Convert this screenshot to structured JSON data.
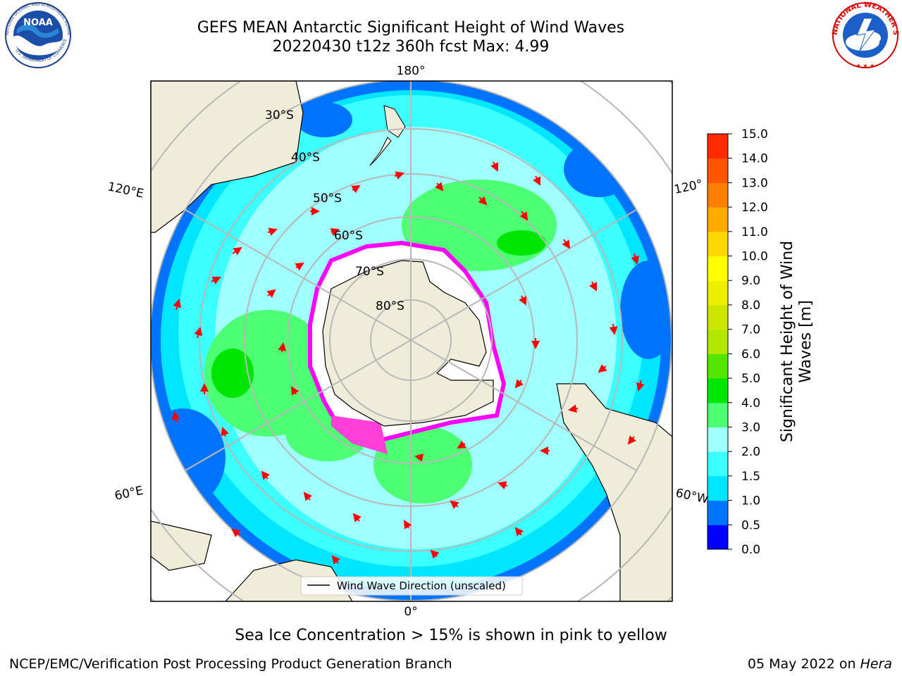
{
  "title": {
    "line1": "GEFS MEAN Antarctic Significant Height of Wind Waves",
    "line2": "20220430 t12z 360h fcst   Max: 4.99"
  },
  "logos": {
    "left": {
      "icon": "noaa-logo",
      "text": "NOAA",
      "ring_text": "NATIONAL OCEANIC AND ATMOSPHERIC ADMINISTRATION · U.S. DEPARTMENT OF COMMERCE"
    },
    "right": {
      "icon": "nws-logo",
      "ring_text": "NATIONAL WEATHER SERVICE"
    }
  },
  "map": {
    "projection": "south-polar-stereographic",
    "longitude_labels": {
      "top": "180°",
      "bottom": "0°",
      "upper_left": "120°E",
      "lower_left": "60°E",
      "upper_right": "120°",
      "lower_right": "60°W"
    },
    "latitude_labels": [
      "30°S",
      "40°S",
      "50°S",
      "60°S",
      "70°S",
      "80°S"
    ],
    "legend_label": "Wind Wave Direction (unscaled)",
    "colors": {
      "land": "#efecd9",
      "ice_edge": "#ff00ff",
      "arrow": "#ff0000",
      "grid": "#b8b8b8"
    }
  },
  "colorbar": {
    "label_line1": "Significant Height of Wind",
    "label_line2": "Waves [m]",
    "ticks": [
      "0.0",
      "0.5",
      "1.0",
      "1.5",
      "2.0",
      "3.0",
      "4.0",
      "5.0",
      "6.0",
      "7.0",
      "8.0",
      "9.0",
      "10.0",
      "11.0",
      "12.0",
      "13.0",
      "14.0",
      "15.0"
    ],
    "colors": [
      "#0000ff",
      "#0073ff",
      "#00e6ff",
      "#3cffff",
      "#a0ffff",
      "#4dff73",
      "#00e600",
      "#55e600",
      "#b3e600",
      "#cce600",
      "#eeee00",
      "#ffff00",
      "#ffd700",
      "#ffaa00",
      "#ff8000",
      "#ff5500",
      "#ff2a00"
    ]
  },
  "note": "Sea Ice Concentration > 15% is shown in pink to yellow",
  "footer": {
    "left": "NCEP/EMC/Verification Post Processing Product Generation Branch",
    "date": "05 May 2022 on ",
    "machine": "Hera"
  }
}
